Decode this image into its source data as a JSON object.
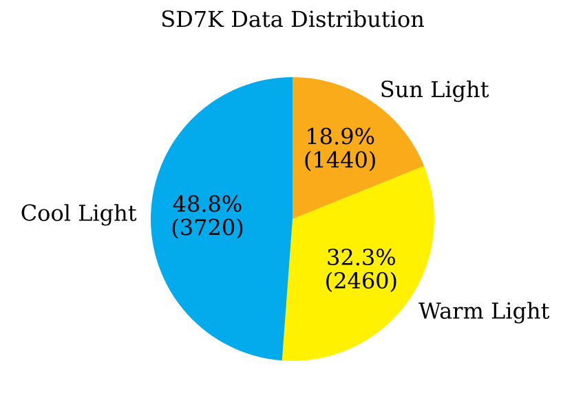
{
  "chart_data": {
    "type": "pie",
    "title": "SD7K Data Distribution",
    "slices": [
      {
        "label": "Sun Light",
        "value": 1440,
        "percent_label": "18.9%",
        "count_label": "(1440)",
        "color": "#F9AB1A"
      },
      {
        "label": "Warm Light",
        "value": 2460,
        "percent_label": "32.3%",
        "count_label": "(2460)",
        "color": "#FFF100"
      },
      {
        "label": "Cool Light",
        "value": 3720,
        "percent_label": "48.8%",
        "count_label": "(3720)",
        "color": "#03ABED"
      }
    ],
    "start_angle": "top",
    "direction": "clockwise"
  }
}
